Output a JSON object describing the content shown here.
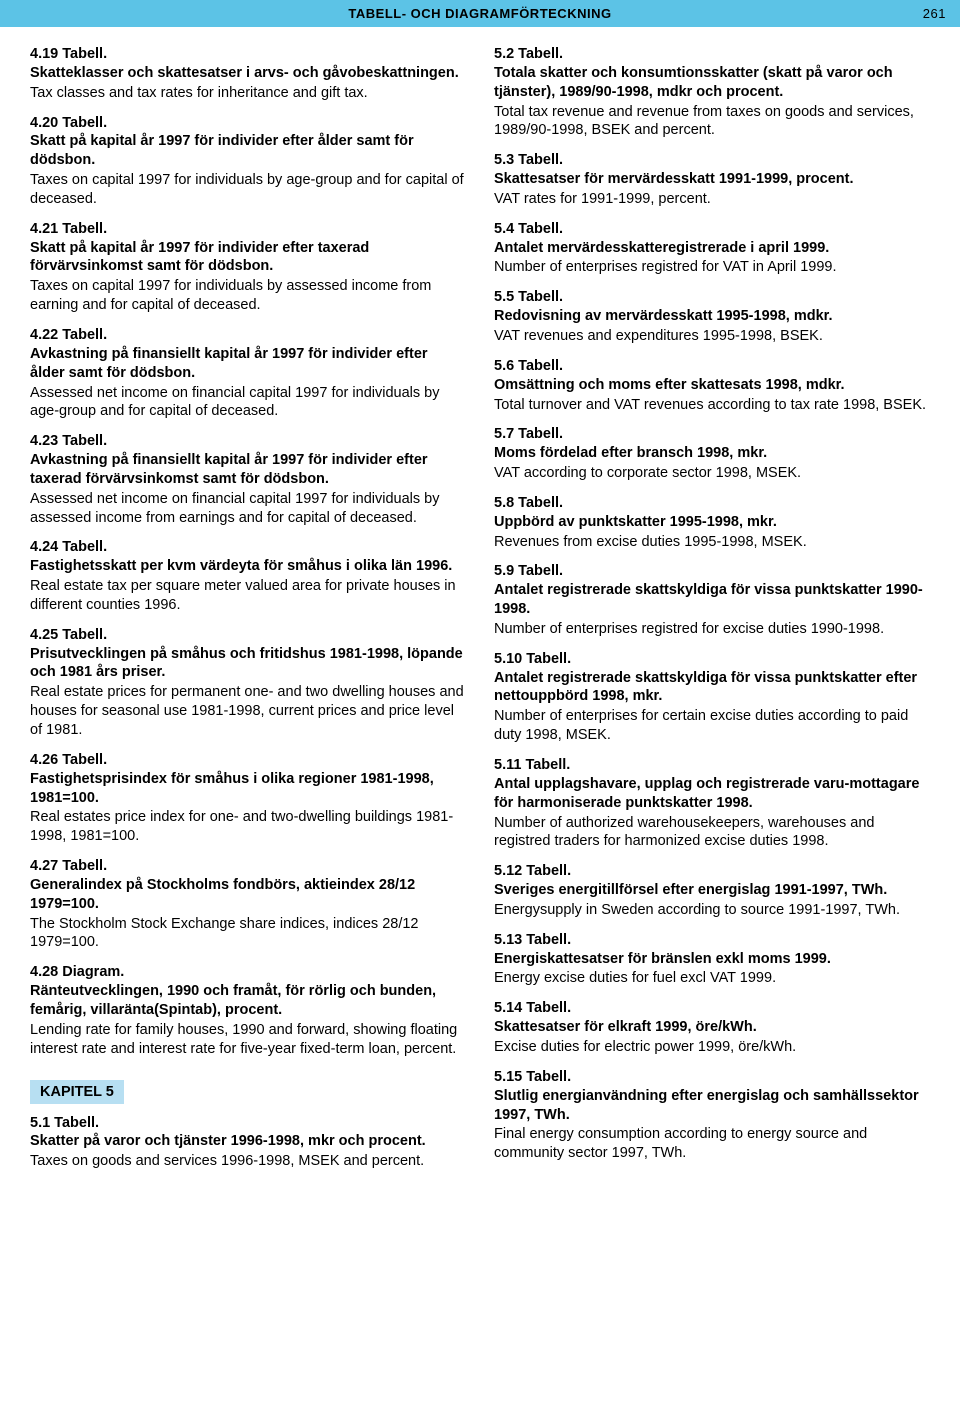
{
  "header": {
    "title": "TABELL- OCH DIAGRAMFÖRTECKNING",
    "page_number": "261",
    "background_color": "#5cc3e6",
    "text_color": "#000000"
  },
  "chapter_label_color": "#b7dff2",
  "left_column": [
    {
      "num": "4.19 Tabell.",
      "sv": "Skatteklasser och skattesatser i arvs- och gåvobeskattningen.",
      "en": "Tax classes and tax rates for inheritance and gift tax."
    },
    {
      "num": "4.20 Tabell.",
      "sv": "Skatt på kapital år 1997 för individer efter ålder samt för dödsbon.",
      "en": "Taxes on capital 1997 for individuals by age-group and for capital of deceased."
    },
    {
      "num": "4.21 Tabell.",
      "sv": "Skatt på kapital år 1997 för individer efter taxerad förvärvsinkomst samt för dödsbon.",
      "en": "Taxes on capital 1997 for individuals by assessed income from earning and for capital of deceased."
    },
    {
      "num": "4.22 Tabell.",
      "sv": "Avkastning på finansiellt kapital år 1997 för individer efter ålder samt för dödsbon.",
      "en": "Assessed net income on financial capital 1997 for individuals by age-group and for capital of deceased."
    },
    {
      "num": "4.23 Tabell.",
      "sv": "Avkastning på finansiellt kapital år 1997 för individer efter taxerad förvärvsinkomst samt för dödsbon.",
      "en": "Assessed net income on financial capital 1997 for individuals by assessed income from earnings and for capital of deceased."
    },
    {
      "num": "4.24 Tabell.",
      "sv": "Fastighetsskatt per kvm värdeyta för småhus i olika län 1996.",
      "en": "Real estate tax per square meter valued area for private houses in different counties 1996."
    },
    {
      "num": "4.25 Tabell.",
      "sv": "Prisutvecklingen på småhus och fritidshus 1981-1998, löpande och 1981 års priser.",
      "en": "Real estate prices for permanent one- and two dwelling houses and houses for seasonal use 1981-1998, current prices and price level of 1981."
    },
    {
      "num": "4.26 Tabell.",
      "sv": "Fastighetsprisindex för småhus i olika regioner 1981-1998, 1981=100.",
      "en": "Real estates price index for one- and two-dwelling buildings 1981-1998, 1981=100."
    },
    {
      "num": "4.27 Tabell.",
      "sv": "Generalindex på Stockholms fondbörs, aktieindex 28/12 1979=100.",
      "en": "The Stockholm Stock Exchange share indices, indices 28/12 1979=100."
    },
    {
      "num": "4.28 Diagram.",
      "sv": "Ränteutvecklingen, 1990 och framåt, för rörlig och bunden, femårig, villaränta(Spintab), procent.",
      "en": "Lending rate for family houses, 1990 and forward, showing floating interest rate and interest rate for five-year fixed-term loan, percent."
    }
  ],
  "chapter_label": "KAPITEL 5",
  "left_tail": [
    {
      "num": "5.1 Tabell.",
      "sv": "Skatter på varor och tjänster 1996-1998, mkr och procent.",
      "en": "Taxes on goods and services 1996-1998, MSEK and percent."
    }
  ],
  "right_column": [
    {
      "num": "5.2 Tabell.",
      "sv": "Totala skatter och konsumtionsskatter (skatt på varor och tjänster), 1989/90-1998, mdkr och procent.",
      "en": "Total tax revenue and revenue from taxes on goods and services, 1989/90-1998, BSEK and percent."
    },
    {
      "num": "5.3 Tabell.",
      "sv": "Skattesatser för mervärdesskatt 1991-1999, procent.",
      "en": "VAT rates for 1991-1999, percent."
    },
    {
      "num": "5.4 Tabell.",
      "sv": "Antalet mervärdesskatteregistrerade i april 1999.",
      "en": "Number of enterprises registred for VAT in April 1999."
    },
    {
      "num": "5.5 Tabell.",
      "sv": "Redovisning av mervärdesskatt 1995-1998, mdkr.",
      "en": "VAT revenues and expenditures 1995-1998, BSEK."
    },
    {
      "num": "5.6 Tabell.",
      "sv": "Omsättning och moms efter skattesats 1998, mdkr.",
      "en": "Total turnover and VAT revenues according to tax rate 1998, BSEK."
    },
    {
      "num": "5.7 Tabell.",
      "sv": "Moms fördelad efter bransch 1998, mkr.",
      "en": "VAT according to corporate sector 1998, MSEK."
    },
    {
      "num": "5.8 Tabell.",
      "sv": "Uppbörd av punktskatter 1995-1998, mkr.",
      "en": "Revenues from excise duties 1995-1998, MSEK."
    },
    {
      "num": "5.9 Tabell.",
      "sv": "Antalet registrerade skattskyldiga för vissa punktskatter 1990-1998.",
      "en": "Number of enterprises registred for excise duties 1990-1998."
    },
    {
      "num": "5.10 Tabell.",
      "sv": "Antalet registrerade skattskyldiga för vissa punktskatter efter nettouppbörd 1998, mkr.",
      "en": "Number of enterprises for certain excise duties according to paid duty 1998, MSEK."
    },
    {
      "num": "5.11 Tabell.",
      "sv": "Antal upplagshavare, upplag och registrerade varu-mottagare för harmoniserade punktskatter 1998.",
      "en": "Number of authorized warehousekeepers, warehouses and registred traders for harmonized excise duties 1998."
    },
    {
      "num": "5.12 Tabell.",
      "sv": "Sveriges energitillförsel efter energislag 1991-1997, TWh.",
      "en": "Energysupply in Sweden according to source 1991-1997, TWh."
    },
    {
      "num": "5.13 Tabell.",
      "sv": "Energiskattesatser för bränslen exkl moms 1999.",
      "en": "Energy excise duties for fuel excl VAT 1999."
    },
    {
      "num": "5.14 Tabell.",
      "sv": "Skattesatser för elkraft 1999, öre/kWh.",
      "en": "Excise duties for electric power 1999, öre/kWh."
    },
    {
      "num": "5.15 Tabell.",
      "sv": "Slutlig energianvändning efter energislag och samhällssektor 1997, TWh.",
      "en": "Final energy consumption according to energy source and community sector 1997, TWh."
    }
  ]
}
